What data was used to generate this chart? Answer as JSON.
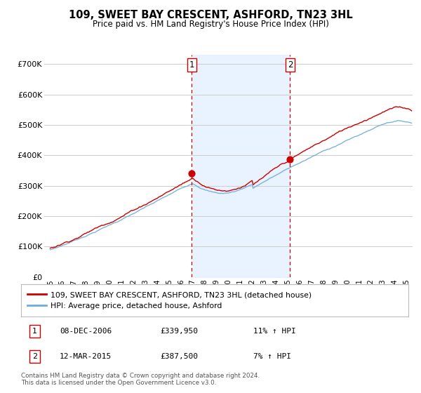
{
  "title": "109, SWEET BAY CRESCENT, ASHFORD, TN23 3HL",
  "subtitle": "Price paid vs. HM Land Registry's House Price Index (HPI)",
  "ylabel_ticks": [
    "£0",
    "£100K",
    "£200K",
    "£300K",
    "£400K",
    "£500K",
    "£600K",
    "£700K"
  ],
  "ylim": [
    0,
    730000
  ],
  "xlim_start": 1994.5,
  "xlim_end": 2025.5,
  "sale1_date": 2006.92,
  "sale1_price": 339950,
  "sale1_label": "1",
  "sale1_hpi": "11% ↑ HPI",
  "sale1_date_str": "08-DEC-2006",
  "sale2_date": 2015.19,
  "sale2_price": 387500,
  "sale2_label": "2",
  "sale2_hpi": "7% ↑ HPI",
  "sale2_date_str": "12-MAR-2015",
  "legend_property": "109, SWEET BAY CRESCENT, ASHFORD, TN23 3HL (detached house)",
  "legend_hpi": "HPI: Average price, detached house, Ashford",
  "footer": "Contains HM Land Registry data © Crown copyright and database right 2024.\nThis data is licensed under the Open Government Licence v3.0.",
  "hpi_color": "#6baed6",
  "property_color": "#cc0000",
  "shade_color": "#ddeeff",
  "vline_color": "#cc0000",
  "grid_color": "#cccccc",
  "background_color": "#ffffff"
}
